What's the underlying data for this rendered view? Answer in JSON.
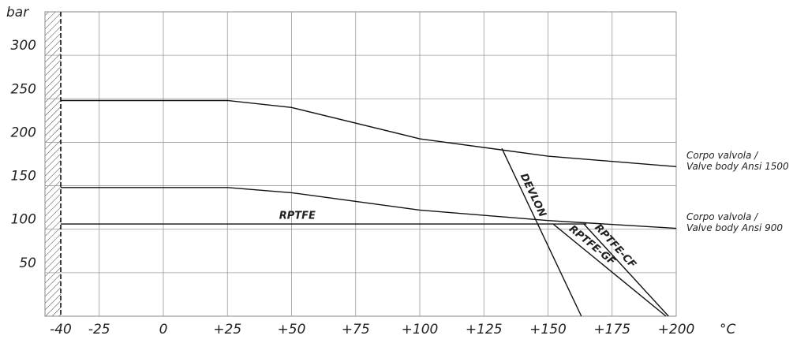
{
  "chart_data": {
    "type": "line",
    "y_label": "bar",
    "x_label": "°C",
    "xlim": [
      -40,
      200
    ],
    "ylim": [
      0,
      350
    ],
    "xticks": [
      -40,
      -25,
      0,
      {
        "value": 25,
        "label": "+25"
      },
      {
        "value": 50,
        "label": "+50"
      },
      {
        "value": 75,
        "label": "+75"
      },
      {
        "value": 100,
        "label": "+100"
      },
      {
        "value": 125,
        "label": "+125"
      },
      {
        "value": 150,
        "label": "+150"
      },
      {
        "value": 175,
        "label": "+175"
      },
      {
        "value": 200,
        "label": "+200"
      }
    ],
    "yticks": [
      50,
      100,
      150,
      200,
      250,
      300
    ],
    "grid": true,
    "series": [
      {
        "name": [
          "Corpo valvola /",
          "Valve body Ansi 1500"
        ],
        "color": "#111",
        "x": [
          -40,
          25,
          50,
          100,
          150,
          200
        ],
        "values": [
          248,
          248,
          240,
          204,
          184,
          172
        ]
      },
      {
        "name": [
          "Corpo valvola /",
          "Valve body Ansi 900"
        ],
        "color": "#111",
        "x": [
          -40,
          25,
          50,
          100,
          150,
          200
        ],
        "values": [
          148,
          148,
          142,
          122,
          110,
          101
        ]
      },
      {
        "name": "RPTFE",
        "color": "#111",
        "x": [
          -40,
          165
        ],
        "values": [
          106,
          106
        ]
      },
      {
        "name": "DEVLON",
        "color": "#111",
        "x": [
          132,
          163
        ],
        "values": [
          193,
          0
        ]
      },
      {
        "name": "RPTFE-GF",
        "color": "#111",
        "x": [
          152,
          196
        ],
        "values": [
          106,
          0
        ]
      },
      {
        "name": "RPTFE-CF",
        "color": "#111",
        "x": [
          164,
          197
        ],
        "values": [
          106,
          0
        ]
      }
    ]
  }
}
